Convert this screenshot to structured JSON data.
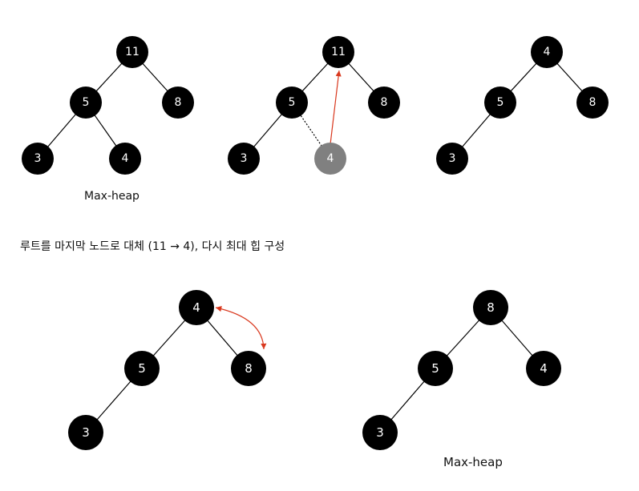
{
  "colors": {
    "node": "#000000",
    "node_moved": "#808080",
    "text": "#ffffff",
    "arrow": "#d9381e"
  },
  "labels": {
    "max_heap_1": "Max-heap",
    "instruction": "루트를 마지막 노드로 대체 (11 → 4), 다시 최대 힙 구성",
    "max_heap_2": "Max-heap"
  },
  "trees": [
    {
      "id": "step1",
      "nodes": {
        "root": "11",
        "left": "5",
        "right": "8",
        "left_left": "3",
        "left_right": "4"
      }
    },
    {
      "id": "step2",
      "nodes": {
        "root": "11",
        "left": "5",
        "right": "8",
        "left_left": "3",
        "moved": "4"
      }
    },
    {
      "id": "step3",
      "nodes": {
        "root": "4",
        "left": "5",
        "right": "8",
        "left_left": "3"
      }
    },
    {
      "id": "step4",
      "nodes": {
        "root": "4",
        "left": "5",
        "right": "8",
        "left_left": "3"
      }
    },
    {
      "id": "step5",
      "nodes": {
        "root": "8",
        "left": "5",
        "right": "4",
        "left_left": "3"
      }
    }
  ]
}
